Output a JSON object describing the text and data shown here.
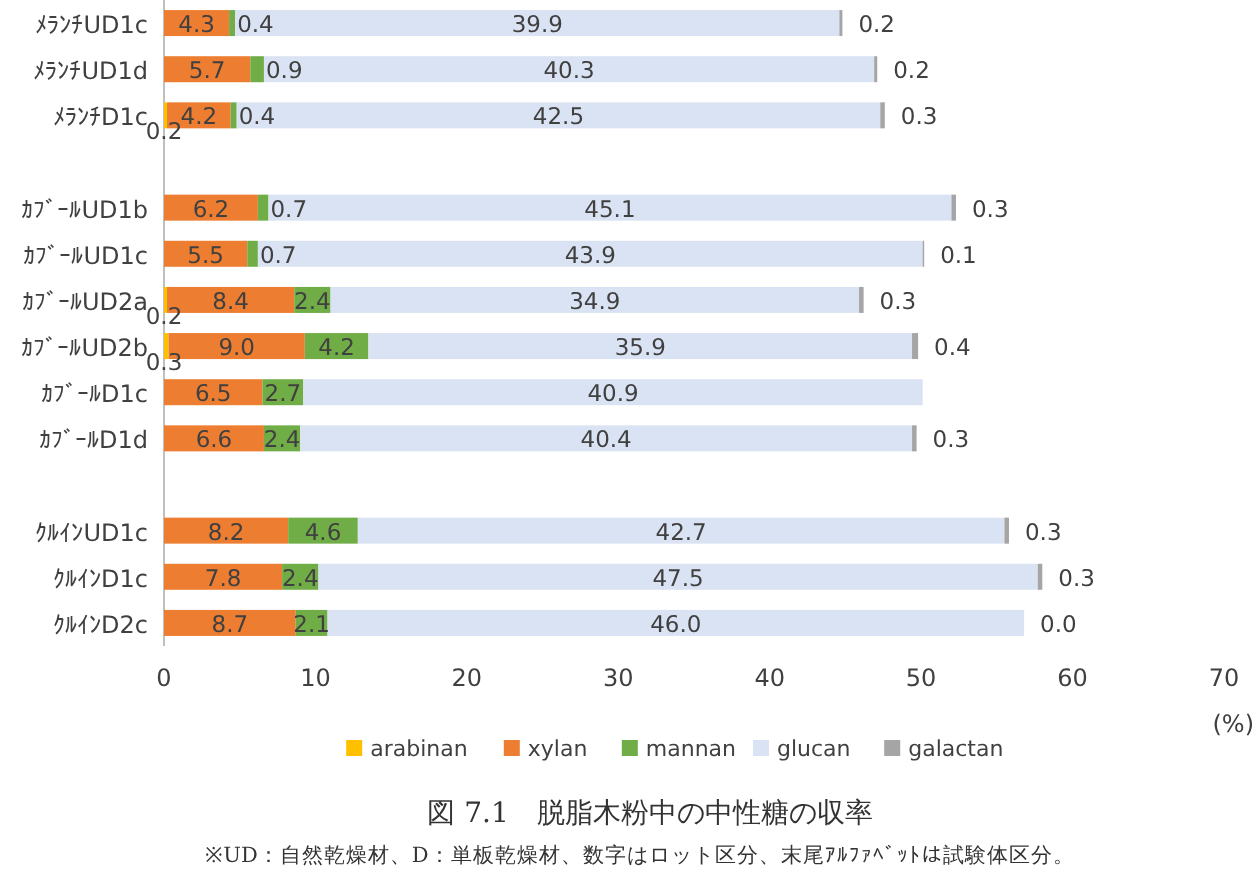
{
  "chart_data": {
    "type": "bar",
    "orientation": "horizontal",
    "stacked": true,
    "title": "図 7.1　脱脂木粉中の中性糖の収率",
    "annotations": [
      "※UD：自然乾燥材、D：単板乾燥材、数字はロット区分、末尾ｱﾙﾌｧﾍﾞｯﾄは試験体区分。"
    ],
    "xlabel": "(%)",
    "categories": [
      "ﾒﾗﾝﾁUD1c",
      "ﾒﾗﾝﾁUD1d",
      "ﾒﾗﾝﾁD1c",
      null,
      "ｶﾌﾞｰﾙUD1b",
      "ｶﾌﾞｰﾙUD1c",
      "ｶﾌﾞｰﾙUD2a",
      "ｶﾌﾞｰﾙUD2b",
      "ｶﾌﾞｰﾙD1c",
      "ｶﾌﾞｰﾙD1d",
      null,
      "ｸﾙｲﾝUD1c",
      "ｸﾙｲﾝD1c",
      "ｸﾙｲﾝD2c"
    ],
    "series": [
      {
        "name": "arabinan",
        "color": "#ffc000",
        "values": [
          null,
          null,
          0.2,
          null,
          null,
          null,
          0.2,
          0.3,
          null,
          null,
          null,
          null,
          null,
          null
        ],
        "value_labels": [
          null,
          null,
          "0.2",
          null,
          null,
          null,
          "0.2",
          "0.3",
          null,
          null,
          null,
          null,
          null,
          null
        ]
      },
      {
        "name": "xylan",
        "color": "#ed7d31",
        "values": [
          4.3,
          5.7,
          4.2,
          null,
          6.2,
          5.5,
          8.4,
          9.0,
          6.5,
          6.6,
          null,
          8.2,
          7.8,
          8.7
        ],
        "value_labels": [
          "4.3",
          "5.7",
          "4.2",
          null,
          "6.2",
          "5.5",
          "8.4",
          "9.0",
          "6.5",
          "6.6",
          null,
          "8.2",
          "7.8",
          "8.7"
        ]
      },
      {
        "name": "mannan",
        "color": "#70ad47",
        "values": [
          0.4,
          0.9,
          0.4,
          null,
          0.7,
          0.7,
          2.4,
          4.2,
          2.7,
          2.4,
          null,
          4.6,
          2.4,
          2.1
        ],
        "value_labels": [
          "0.4",
          "0.9",
          "0.4",
          null,
          "0.7",
          "0.7",
          "2.4",
          "4.2",
          "2.7",
          "2.4",
          null,
          "4.6",
          "2.4",
          "2.1"
        ]
      },
      {
        "name": "glucan",
        "color": "#dae3f3",
        "values": [
          39.9,
          40.3,
          42.5,
          null,
          45.1,
          43.9,
          34.9,
          35.9,
          40.9,
          40.4,
          null,
          42.7,
          47.5,
          46.0
        ],
        "value_labels": [
          "39.9",
          "40.3",
          "42.5",
          null,
          "45.1",
          "43.9",
          "34.9",
          "35.9",
          "40.9",
          "40.4",
          null,
          "42.7",
          "47.5",
          "46.0"
        ]
      },
      {
        "name": "galactan",
        "color": "#a5a5a5",
        "values": [
          0.2,
          0.2,
          0.3,
          null,
          0.3,
          0.1,
          0.3,
          0.4,
          null,
          0.3,
          null,
          0.3,
          0.3,
          0.0
        ],
        "value_labels": [
          "0.2",
          "0.2",
          "0.3",
          null,
          "0.3",
          "0.1",
          "0.3",
          "0.4",
          null,
          "0.3",
          null,
          "0.3",
          "0.3",
          "0.0"
        ]
      }
    ],
    "xlim": [
      0,
      70
    ],
    "xticks": [
      0,
      10,
      20,
      30,
      40,
      50,
      60,
      70
    ],
    "legend": "bottom",
    "grid": false
  }
}
